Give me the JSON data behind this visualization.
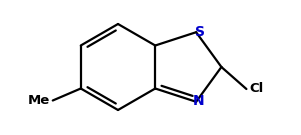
{
  "bg_color": "#ffffff",
  "bond_color": "#000000",
  "atom_color_N": "#0000cc",
  "atom_color_S": "#0000cc",
  "atom_color_C": "#000000",
  "line_width": 1.6,
  "figsize": [
    3.01,
    1.35
  ],
  "dpi": 100,
  "xlim": [
    0,
    301
  ],
  "ylim": [
    0,
    135
  ]
}
